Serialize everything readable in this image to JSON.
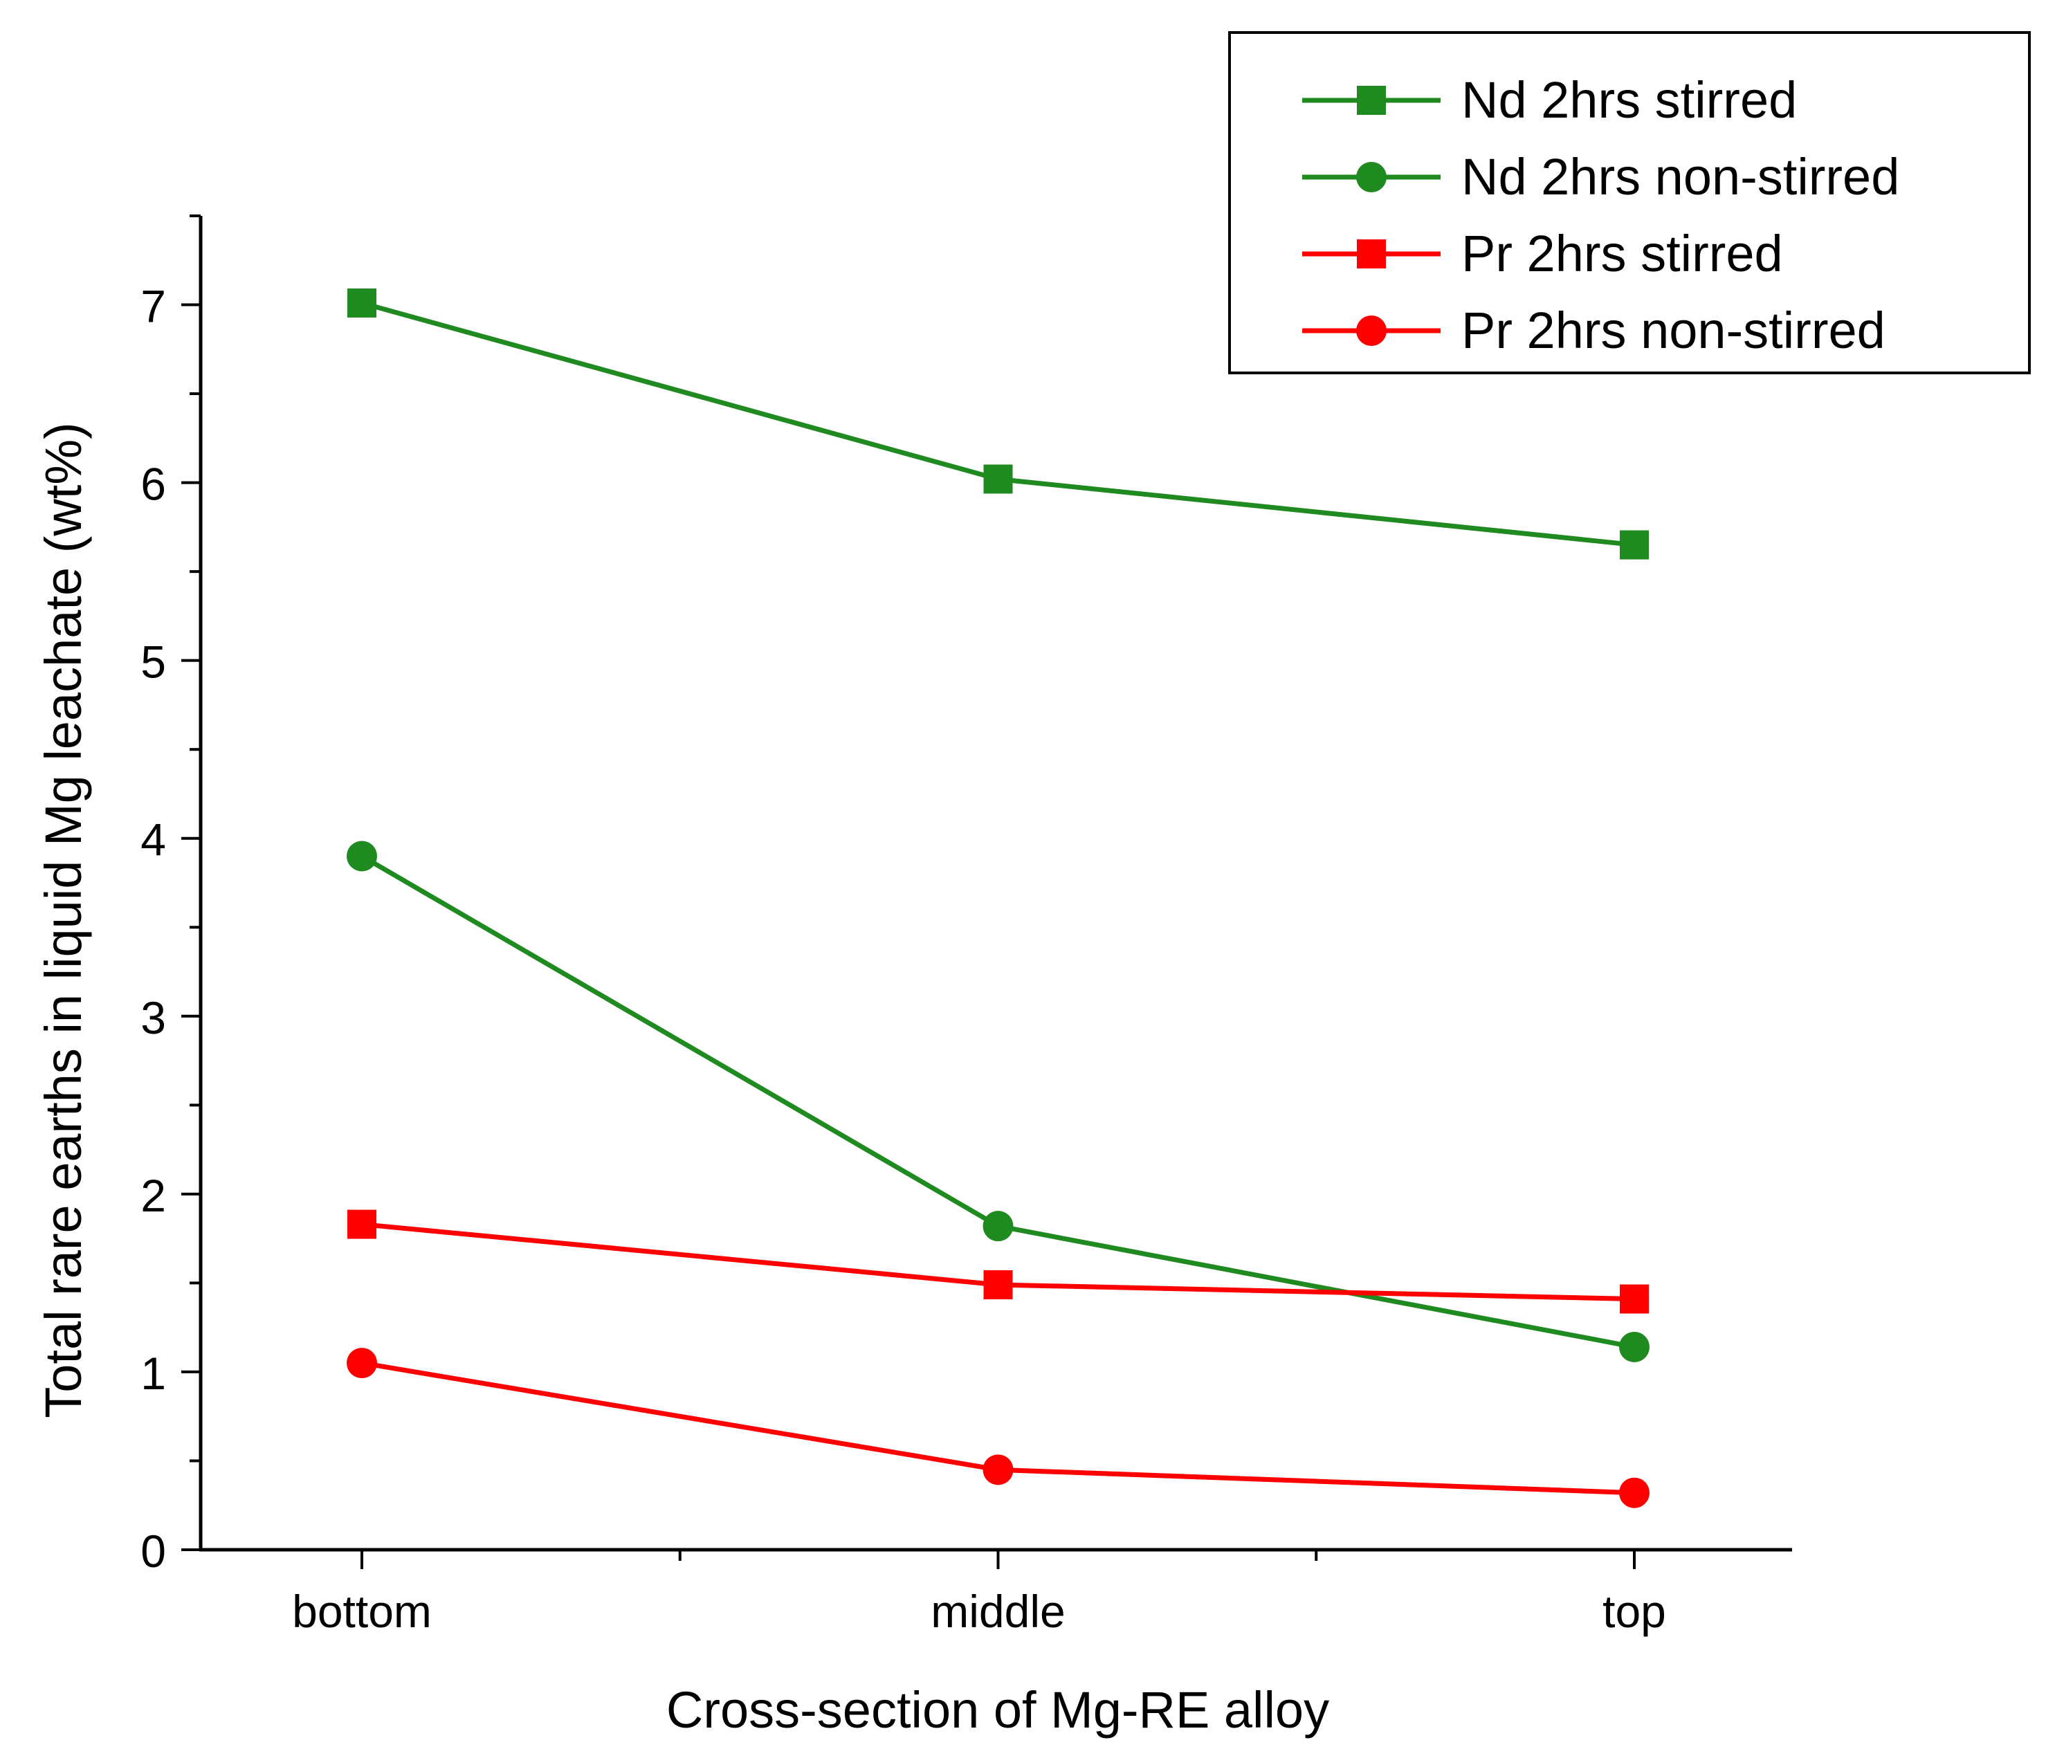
{
  "chart_data": {
    "type": "line",
    "title": "",
    "xlabel": "Cross-section of Mg-RE alloy",
    "ylabel": "Total rare earths in liquid Mg leachate (wt%)",
    "categories": [
      "bottom",
      "middle",
      "top"
    ],
    "ylim": [
      0,
      7.5
    ],
    "yticks": [
      0,
      1,
      2,
      3,
      4,
      5,
      6,
      7
    ],
    "yticks_minor_step": 0.5,
    "grid": false,
    "legend_position": "top-right",
    "series": [
      {
        "name": "Nd 2hrs stirred",
        "color": "#1f8a1f",
        "marker": "square",
        "values": [
          7.01,
          6.02,
          5.65
        ]
      },
      {
        "name": "Nd 2hrs non-stirred",
        "color": "#1f8a1f",
        "marker": "circle",
        "values": [
          3.9,
          1.82,
          1.14
        ]
      },
      {
        "name": "Pr 2hrs stirred",
        "color": "#ff0000",
        "marker": "square",
        "values": [
          1.83,
          1.49,
          1.41
        ]
      },
      {
        "name": "Pr 2hrs non-stirred",
        "color": "#ff0000",
        "marker": "circle",
        "values": [
          1.05,
          0.45,
          0.32
        ]
      }
    ]
  }
}
